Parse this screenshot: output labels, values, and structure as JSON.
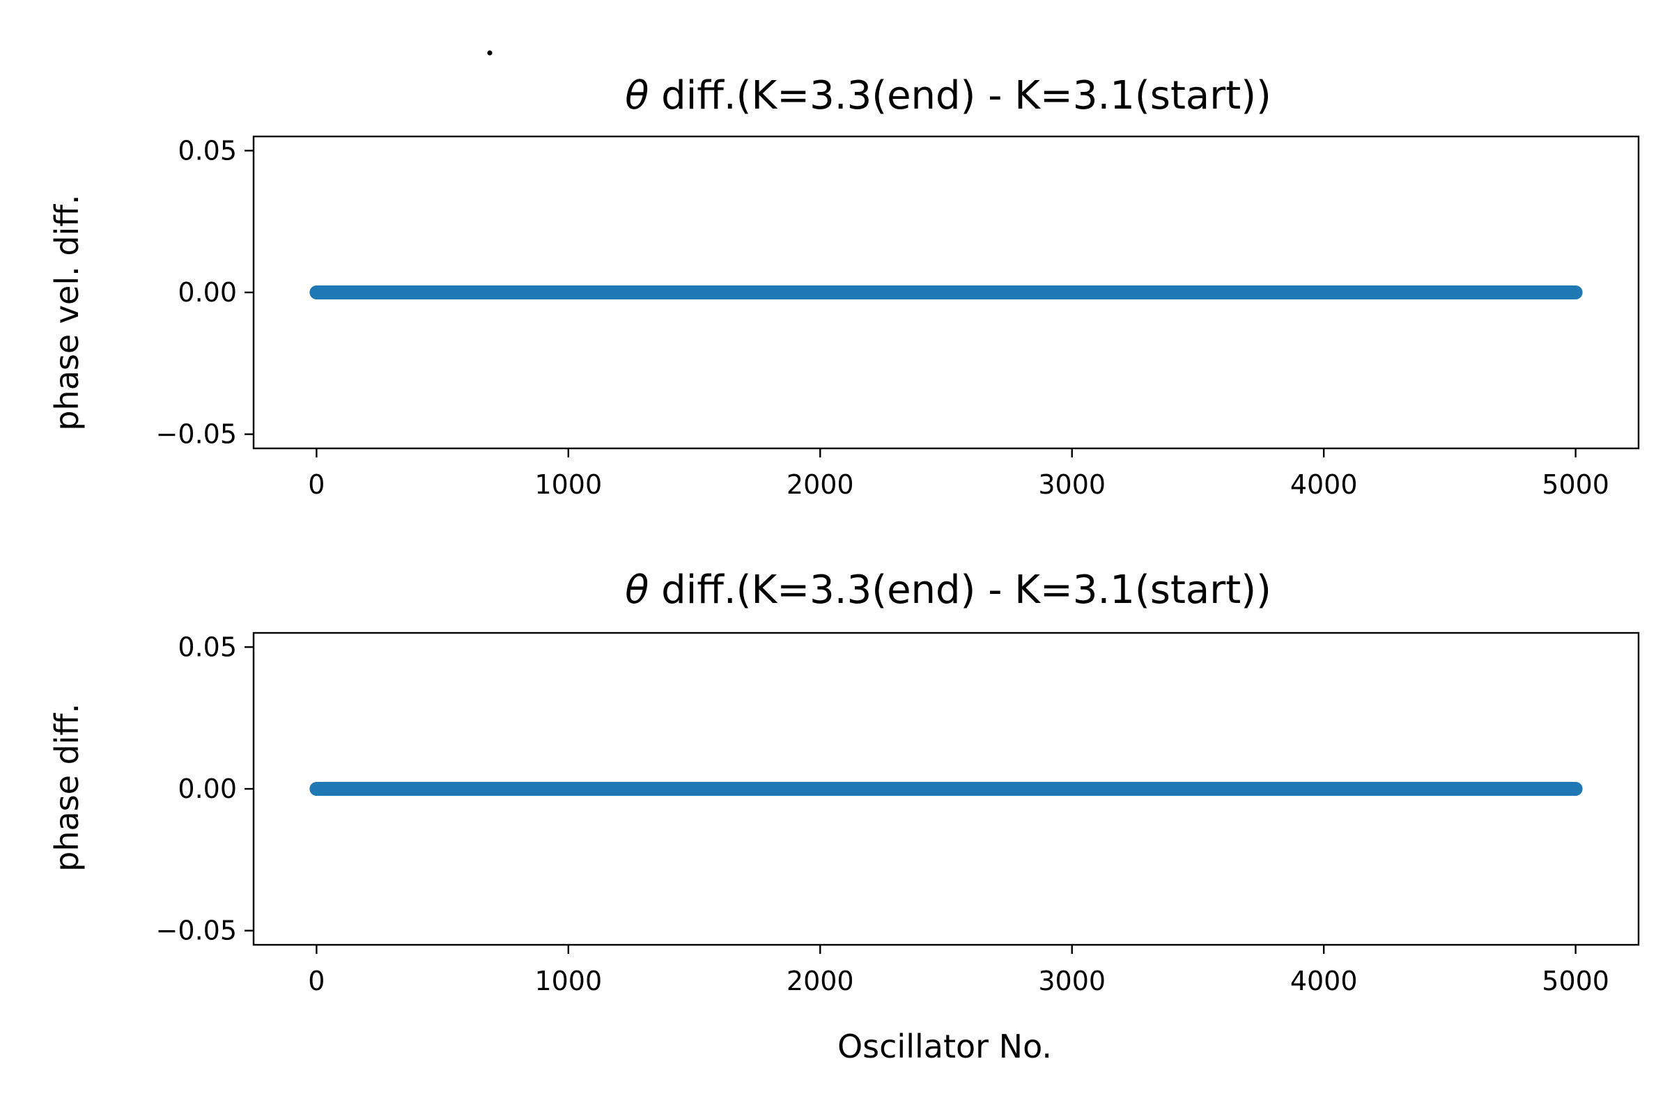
{
  "figure": {
    "background": "#ffffff"
  },
  "chart_data": [
    {
      "type": "scatter",
      "title_symbol": "θ",
      "title_symbol_has_dot": true,
      "title_rest": " diff.(K=3.3(end) - K=3.1(start))",
      "xlabel": "",
      "ylabel": "phase vel. diff.",
      "xlim": [
        -250,
        5250
      ],
      "ylim": [
        -0.055,
        0.055
      ],
      "xticks": [
        0,
        1000,
        2000,
        3000,
        4000,
        5000
      ],
      "xtick_labels": [
        "0",
        "1000",
        "2000",
        "3000",
        "4000",
        "5000"
      ],
      "yticks": [
        0.05,
        0.0,
        -0.05
      ],
      "ytick_labels": [
        "0.05",
        "0.00",
        "−0.05"
      ],
      "grid": false,
      "series": [
        {
          "color": "#1f77b4",
          "x_range": [
            0,
            5000
          ],
          "y_constant": 0.0
        }
      ]
    },
    {
      "type": "scatter",
      "title_symbol": "θ",
      "title_symbol_has_dot": false,
      "title_rest": " diff.(K=3.3(end) - K=3.1(start))",
      "xlabel": "Oscillator No.",
      "ylabel": "phase diff.",
      "xlim": [
        -250,
        5250
      ],
      "ylim": [
        -0.055,
        0.055
      ],
      "xticks": [
        0,
        1000,
        2000,
        3000,
        4000,
        5000
      ],
      "xtick_labels": [
        "0",
        "1000",
        "2000",
        "3000",
        "4000",
        "5000"
      ],
      "yticks": [
        0.05,
        0.0,
        -0.05
      ],
      "ytick_labels": [
        "0.05",
        "0.00",
        "−0.05"
      ],
      "grid": false,
      "series": [
        {
          "color": "#1f77b4",
          "x_range": [
            0,
            5000
          ],
          "y_constant": 0.0
        }
      ]
    }
  ]
}
